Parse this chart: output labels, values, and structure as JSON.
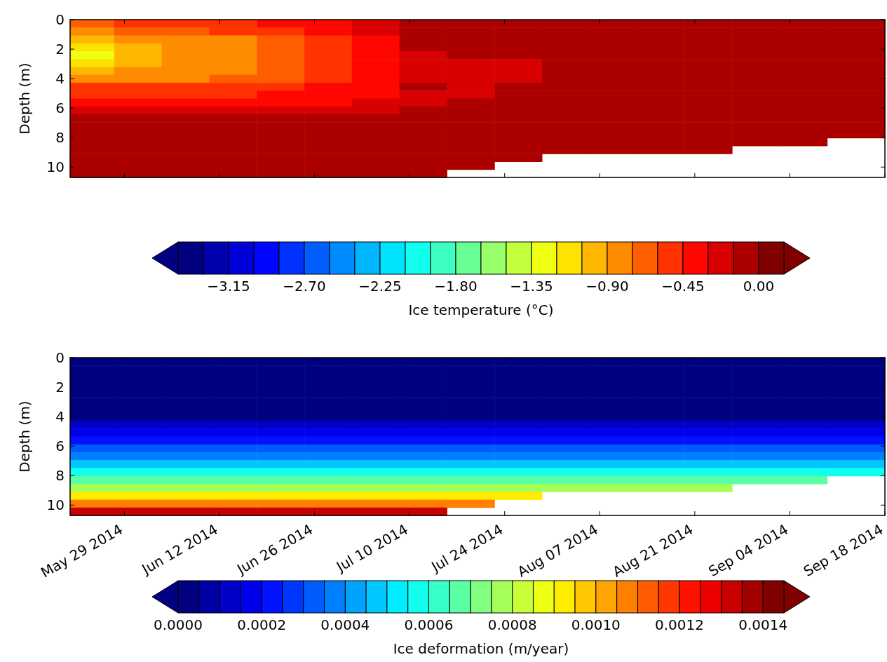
{
  "chart_data": [
    {
      "type": "heatmap",
      "ylabel": "Depth (m)",
      "clabel": "Ice temperature (°C)",
      "tick_labels": "y",
      "x": [
        "2014-05-24",
        "2014-05-31",
        "2014-06-07",
        "2014-06-14",
        "2014-06-21",
        "2014-06-28",
        "2014-07-05",
        "2014-07-12",
        "2014-07-19",
        "2014-07-26",
        "2014-08-02",
        "2014-08-09",
        "2014-08-16",
        "2014-08-23",
        "2014-08-30",
        "2014-09-06",
        "2014-09-13"
      ],
      "xlim": [
        "2014-05-21",
        "2014-09-18"
      ],
      "xticks": [
        {
          "value": "2014-05-29",
          "label": null
        },
        {
          "value": "2014-06-12",
          "label": null
        },
        {
          "value": "2014-06-26",
          "label": null
        },
        {
          "value": "2014-07-10",
          "label": null
        },
        {
          "value": "2014-07-24",
          "label": null
        },
        {
          "value": "2014-08-07",
          "label": null
        },
        {
          "value": "2014-08-21",
          "label": null
        },
        {
          "value": "2014-09-04",
          "label": null
        },
        {
          "value": "2014-09-18",
          "label": null
        }
      ],
      "ylim": [
        10.7,
        0
      ],
      "yticks": [
        0,
        2,
        4,
        6,
        8,
        10
      ],
      "clim": [
        -3.45,
        0.15
      ],
      "cticks": [
        {
          "value": -3.45,
          "label": null
        },
        {
          "value": -3.3,
          "label": null
        },
        {
          "value": -3.15,
          "label": "−3.15"
        },
        {
          "value": -3.0,
          "label": null
        },
        {
          "value": -2.85,
          "label": null
        },
        {
          "value": -2.7,
          "label": "−2.70"
        },
        {
          "value": -2.55,
          "label": null
        },
        {
          "value": -2.4,
          "label": null
        },
        {
          "value": -2.25,
          "label": "−2.25"
        },
        {
          "value": -2.1,
          "label": null
        },
        {
          "value": -1.95,
          "label": null
        },
        {
          "value": -1.8,
          "label": "−1.80"
        },
        {
          "value": -1.65,
          "label": null
        },
        {
          "value": -1.5,
          "label": null
        },
        {
          "value": -1.35,
          "label": "−1.35"
        },
        {
          "value": -1.2,
          "label": null
        },
        {
          "value": -1.05,
          "label": null
        },
        {
          "value": -0.9,
          "label": "−0.90"
        },
        {
          "value": -0.75,
          "label": null
        },
        {
          "value": -0.6,
          "label": null
        },
        {
          "value": -0.45,
          "label": "−0.45"
        },
        {
          "value": -0.3,
          "label": null
        },
        {
          "value": -0.15,
          "label": null
        },
        {
          "value": 0,
          "label": "0.00"
        },
        {
          "value": 0.15,
          "label": null
        }
      ],
      "cells": [
        [
          -0.7,
          -0.55,
          -0.55,
          -0.55,
          -0.4,
          -0.4,
          -0.2,
          -0.1,
          -0.1,
          -0.1,
          -0.1,
          -0.1,
          -0.1,
          -0.1,
          -0.1,
          -0.1,
          -0.1
        ],
        [
          -0.85,
          -0.7,
          -0.7,
          -0.55,
          -0.55,
          -0.4,
          -0.2,
          -0.1,
          -0.1,
          -0.1,
          -0.1,
          -0.1,
          -0.1,
          -0.1,
          -0.1,
          -0.1,
          -0.1
        ],
        [
          -1.0,
          -0.85,
          -0.85,
          -0.85,
          -0.7,
          -0.55,
          -0.4,
          -0.1,
          -0.1,
          -0.1,
          -0.1,
          -0.1,
          -0.1,
          -0.1,
          -0.1,
          -0.1,
          -0.1
        ],
        [
          -1.2,
          -1.0,
          -0.85,
          -0.85,
          -0.7,
          -0.55,
          -0.4,
          -0.1,
          -0.1,
          -0.1,
          -0.1,
          -0.1,
          -0.1,
          -0.1,
          -0.1,
          -0.1,
          -0.1
        ],
        [
          -1.3,
          -1.0,
          -0.85,
          -0.85,
          -0.7,
          -0.55,
          -0.4,
          -0.2,
          -0.1,
          -0.1,
          -0.1,
          -0.1,
          -0.1,
          -0.1,
          -0.1,
          -0.1,
          -0.1
        ],
        [
          -1.1,
          -1.0,
          -0.85,
          -0.85,
          -0.7,
          -0.55,
          -0.4,
          -0.2,
          -0.2,
          -0.2,
          -0.1,
          -0.1,
          -0.1,
          -0.1,
          -0.1,
          -0.1,
          -0.1
        ],
        [
          -1.0,
          -0.85,
          -0.85,
          -0.85,
          -0.7,
          -0.55,
          -0.4,
          -0.2,
          -0.2,
          -0.2,
          -0.1,
          -0.1,
          -0.1,
          -0.1,
          -0.1,
          -0.1,
          -0.1
        ],
        [
          -0.85,
          -0.85,
          -0.85,
          -0.7,
          -0.7,
          -0.55,
          -0.4,
          -0.2,
          -0.2,
          -0.2,
          -0.1,
          -0.1,
          -0.1,
          -0.1,
          -0.1,
          -0.1,
          -0.1
        ],
        [
          -0.55,
          -0.55,
          -0.55,
          -0.55,
          -0.55,
          -0.4,
          -0.4,
          -0.1,
          -0.2,
          -0.1,
          -0.1,
          -0.1,
          -0.1,
          -0.1,
          -0.1,
          -0.1,
          -0.1
        ],
        [
          -0.55,
          -0.55,
          -0.55,
          -0.55,
          -0.4,
          -0.4,
          -0.4,
          -0.2,
          -0.2,
          -0.1,
          -0.1,
          -0.1,
          -0.1,
          -0.1,
          -0.1,
          -0.1,
          -0.1
        ],
        [
          -0.4,
          -0.4,
          -0.4,
          -0.4,
          -0.4,
          -0.4,
          -0.2,
          -0.2,
          -0.1,
          -0.1,
          -0.1,
          -0.1,
          -0.1,
          -0.1,
          -0.1,
          -0.1,
          -0.1
        ],
        [
          -0.2,
          -0.2,
          -0.2,
          -0.2,
          -0.2,
          -0.2,
          -0.2,
          -0.1,
          -0.1,
          -0.1,
          -0.1,
          -0.1,
          -0.1,
          -0.1,
          -0.1,
          -0.1,
          -0.1
        ],
        [
          -0.1,
          -0.1,
          -0.1,
          -0.1,
          -0.1,
          -0.1,
          -0.1,
          -0.1,
          -0.1,
          -0.1,
          -0.1,
          -0.1,
          -0.1,
          -0.1,
          -0.1,
          -0.1,
          -0.1
        ],
        [
          -0.1,
          -0.1,
          -0.1,
          -0.1,
          -0.1,
          -0.1,
          -0.1,
          -0.1,
          -0.1,
          -0.1,
          -0.1,
          -0.1,
          -0.1,
          -0.1,
          -0.1,
          -0.1,
          -0.1
        ],
        [
          -0.1,
          -0.1,
          -0.1,
          -0.1,
          -0.1,
          -0.1,
          -0.1,
          -0.1,
          -0.1,
          -0.1,
          -0.1,
          -0.1,
          -0.1,
          -0.1,
          -0.1,
          -0.1,
          -0.1
        ],
        [
          -0.1,
          -0.1,
          -0.1,
          -0.1,
          -0.1,
          -0.1,
          -0.1,
          -0.1,
          -0.1,
          -0.1,
          -0.1,
          -0.1,
          -0.1,
          -0.1,
          -0.1,
          -0.1,
          null
        ],
        [
          -0.1,
          -0.1,
          -0.1,
          -0.1,
          -0.1,
          -0.1,
          -0.1,
          -0.1,
          -0.1,
          -0.1,
          -0.1,
          -0.1,
          -0.1,
          -0.1,
          null,
          null,
          null
        ],
        [
          -0.1,
          -0.1,
          -0.1,
          -0.1,
          -0.1,
          -0.1,
          -0.1,
          -0.1,
          -0.1,
          -0.1,
          null,
          null,
          null,
          null,
          null,
          null,
          null
        ],
        [
          -0.1,
          -0.1,
          -0.1,
          -0.1,
          -0.1,
          -0.1,
          -0.1,
          -0.1,
          -0.1,
          null,
          null,
          null,
          null,
          null,
          null,
          null,
          null
        ],
        [
          -0.1,
          -0.1,
          -0.1,
          -0.1,
          -0.1,
          -0.1,
          -0.1,
          -0.1,
          null,
          null,
          null,
          null,
          null,
          null,
          null,
          null,
          null
        ]
      ]
    },
    {
      "type": "heatmap",
      "ylabel": "Depth (m)",
      "clabel": "Ice deformation (m/year)",
      "x": [
        "2014-05-24",
        "2014-05-31",
        "2014-06-07",
        "2014-06-14",
        "2014-06-21",
        "2014-06-28",
        "2014-07-05",
        "2014-07-12",
        "2014-07-19",
        "2014-07-26",
        "2014-08-02",
        "2014-08-09",
        "2014-08-16",
        "2014-08-23",
        "2014-08-30",
        "2014-09-06",
        "2014-09-13"
      ],
      "xlim": [
        "2014-05-21",
        "2014-09-18"
      ],
      "xticks": [
        {
          "value": "2014-05-29",
          "label": "May 29 2014"
        },
        {
          "value": "2014-06-12",
          "label": "Jun 12 2014"
        },
        {
          "value": "2014-06-26",
          "label": "Jun 26 2014"
        },
        {
          "value": "2014-07-10",
          "label": "Jul 10 2014"
        },
        {
          "value": "2014-07-24",
          "label": "Jul 24 2014"
        },
        {
          "value": "2014-08-07",
          "label": "Aug 07 2014"
        },
        {
          "value": "2014-08-21",
          "label": "Aug 21 2014"
        },
        {
          "value": "2014-09-04",
          "label": "Sep 04 2014"
        },
        {
          "value": "2014-09-18",
          "label": "Sep 18 2014"
        }
      ],
      "ylim": [
        10.7,
        0
      ],
      "yticks": [
        0,
        2,
        4,
        6,
        8,
        10
      ],
      "clim": [
        0,
        0.00145
      ],
      "cticks": [
        {
          "value": 0,
          "label": "0.0000"
        },
        {
          "value": 5e-05,
          "label": null
        },
        {
          "value": 0.0001,
          "label": null
        },
        {
          "value": 0.00015,
          "label": null
        },
        {
          "value": 0.0002,
          "label": "0.0002"
        },
        {
          "value": 0.00025,
          "label": null
        },
        {
          "value": 0.0003,
          "label": null
        },
        {
          "value": 0.00035,
          "label": null
        },
        {
          "value": 0.0004,
          "label": "0.0004"
        },
        {
          "value": 0.00045,
          "label": null
        },
        {
          "value": 0.0005,
          "label": null
        },
        {
          "value": 0.00055,
          "label": null
        },
        {
          "value": 0.0006,
          "label": "0.0006"
        },
        {
          "value": 0.00065,
          "label": null
        },
        {
          "value": 0.0007,
          "label": null
        },
        {
          "value": 0.00075,
          "label": null
        },
        {
          "value": 0.0008,
          "label": "0.0008"
        },
        {
          "value": 0.00085,
          "label": null
        },
        {
          "value": 0.0009,
          "label": null
        },
        {
          "value": 0.00095,
          "label": null
        },
        {
          "value": 0.001,
          "label": "0.0010"
        },
        {
          "value": 0.00105,
          "label": null
        },
        {
          "value": 0.0011,
          "label": null
        },
        {
          "value": 0.00115,
          "label": null
        },
        {
          "value": 0.0012,
          "label": "0.0012"
        },
        {
          "value": 0.00125,
          "label": null
        },
        {
          "value": 0.0013,
          "label": null
        },
        {
          "value": 0.00135,
          "label": null
        },
        {
          "value": 0.0014,
          "label": "0.0014"
        },
        {
          "value": 0.00145,
          "label": null
        }
      ],
      "cells": [
        [
          0,
          0,
          0,
          0,
          0,
          0,
          0,
          0,
          0,
          0,
          0,
          0,
          0,
          0,
          0,
          0,
          0
        ],
        [
          0,
          0,
          0,
          0,
          0,
          0,
          0,
          0,
          0,
          0,
          0,
          0,
          0,
          0,
          0,
          0,
          0
        ],
        [
          0,
          0,
          0,
          0,
          0,
          0,
          0,
          0,
          0,
          0,
          0,
          0,
          0,
          0,
          0,
          0,
          0
        ],
        [
          0,
          0,
          0,
          0,
          0,
          0,
          0,
          0,
          0,
          0,
          0,
          0,
          0,
          0,
          0,
          0,
          0
        ],
        [
          0,
          0,
          0,
          0,
          0,
          0,
          0,
          0,
          0,
          0,
          0,
          0,
          0,
          0,
          0,
          0,
          0
        ],
        [
          0,
          0,
          0,
          0,
          0,
          0,
          0,
          0,
          0,
          0,
          0,
          0,
          0,
          0,
          0,
          0,
          0
        ],
        [
          0,
          0,
          0,
          0,
          0,
          0,
          0,
          0,
          0,
          0,
          0,
          0,
          0,
          0,
          0,
          0,
          0
        ],
        [
          0,
          0,
          0,
          0,
          0,
          0,
          0,
          0,
          0,
          0,
          0,
          0,
          0,
          0,
          0,
          0,
          0
        ],
        [
          0.0001,
          0.0001,
          0.0001,
          0.0001,
          0.0001,
          0.0001,
          0.0001,
          0.0001,
          0.0001,
          0.0001,
          0.0001,
          0.0001,
          0.0001,
          0.0001,
          0.0001,
          0.0001,
          0.0001
        ],
        [
          0.00015,
          0.00015,
          0.00015,
          0.00015,
          0.00015,
          0.00015,
          0.00015,
          0.00015,
          0.00015,
          0.00015,
          0.00015,
          0.00015,
          0.00015,
          0.00015,
          0.00015,
          0.00015,
          0.00015
        ],
        [
          0.0002,
          0.0002,
          0.0002,
          0.0002,
          0.0002,
          0.0002,
          0.0002,
          0.0002,
          0.0002,
          0.0002,
          0.0002,
          0.0002,
          0.0002,
          0.0002,
          0.0002,
          0.0002,
          0.0002
        ],
        [
          0.0003,
          0.0003,
          0.0003,
          0.0003,
          0.0003,
          0.0003,
          0.0003,
          0.0003,
          0.0003,
          0.0003,
          0.0003,
          0.0003,
          0.0003,
          0.0003,
          0.0003,
          0.0003,
          0.0003
        ],
        [
          0.00035,
          0.00035,
          0.00035,
          0.00035,
          0.00035,
          0.00035,
          0.00035,
          0.00035,
          0.00035,
          0.00035,
          0.00035,
          0.00035,
          0.00035,
          0.00035,
          0.00035,
          0.00035,
          0.00035
        ],
        [
          0.00045,
          0.00045,
          0.00045,
          0.00045,
          0.00045,
          0.00045,
          0.00045,
          0.00045,
          0.00045,
          0.00045,
          0.00045,
          0.00045,
          0.00045,
          0.00045,
          0.00045,
          0.00045,
          0.00045
        ],
        [
          0.00055,
          0.00055,
          0.00055,
          0.00055,
          0.00055,
          0.00055,
          0.00055,
          0.00055,
          0.00055,
          0.00055,
          0.00055,
          0.00055,
          0.00055,
          0.00055,
          0.00055,
          0.00055,
          0.00055
        ],
        [
          0.00065,
          0.00065,
          0.00065,
          0.00065,
          0.00065,
          0.00065,
          0.00065,
          0.00065,
          0.00065,
          0.00065,
          0.00065,
          0.00065,
          0.00065,
          0.00065,
          0.00065,
          0.00065,
          null
        ],
        [
          0.00075,
          0.00075,
          0.00075,
          0.00075,
          0.00075,
          0.00075,
          0.00075,
          0.00075,
          0.00075,
          0.00075,
          0.00075,
          0.00075,
          0.00075,
          0.00075,
          null,
          null,
          null
        ],
        [
          0.0009,
          0.0009,
          0.0009,
          0.0009,
          0.0009,
          0.0009,
          0.0009,
          0.0009,
          0.0009,
          0.0009,
          null,
          null,
          null,
          null,
          null,
          null,
          null
        ],
        [
          0.00105,
          0.00105,
          0.00105,
          0.00105,
          0.00105,
          0.00105,
          0.00105,
          0.00105,
          0.00105,
          null,
          null,
          null,
          null,
          null,
          null,
          null,
          null
        ],
        [
          0.0013,
          0.0013,
          0.0013,
          0.0013,
          0.0013,
          0.0013,
          0.0013,
          0.0013,
          null,
          null,
          null,
          null,
          null,
          null,
          null,
          null,
          null
        ]
      ]
    }
  ]
}
